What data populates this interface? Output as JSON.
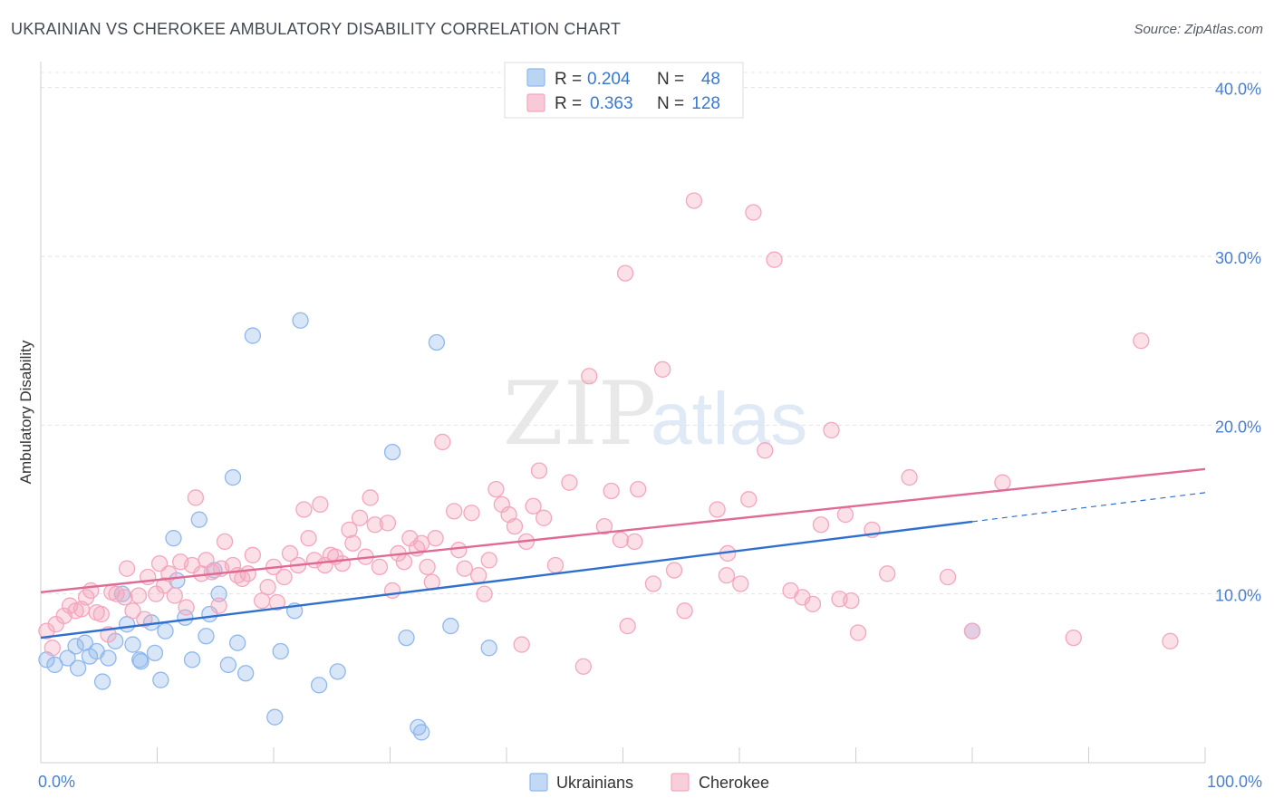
{
  "header": {
    "title": "UKRAINIAN VS CHEROKEE AMBULATORY DISABILITY CORRELATION CHART",
    "source": "Source: ZipAtlas.com"
  },
  "watermark": {
    "zip": "ZIP",
    "atlas": "atlas"
  },
  "legend": {
    "r_label": "R =",
    "n_label": "N =",
    "rows": [
      {
        "r": "0.204",
        "n": "48",
        "color": "#8fb8ec"
      },
      {
        "r": "0.363",
        "n": "128",
        "color": "#f4a6be"
      }
    ]
  },
  "bottom_legend": [
    "Ukrainians",
    "Cherokee"
  ],
  "chart_data": {
    "type": "scatter",
    "title": "UKRAINIAN VS CHEROKEE AMBULATORY DISABILITY CORRELATION CHART",
    "xlabel": "",
    "ylabel": "Ambulatory Disability",
    "xlim": [
      0,
      100
    ],
    "ylim": [
      0,
      41
    ],
    "x_tick_labels": [
      "0.0%",
      "100.0%"
    ],
    "y_ticks": [
      10,
      20,
      30,
      40
    ],
    "y_tick_labels": [
      "10.0%",
      "20.0%",
      "30.0%",
      "40.0%"
    ],
    "grid": true,
    "series": [
      {
        "name": "Ukrainians",
        "color": "#8fb8ec",
        "line_color": "#2f6fd0",
        "trend": {
          "x0": 0,
          "y0": 7.4,
          "x1": 100,
          "y1": 16.0,
          "solid_until": 80
        },
        "points": [
          [
            0.5,
            6.1
          ],
          [
            1.2,
            5.8
          ],
          [
            2.3,
            6.2
          ],
          [
            3.0,
            6.9
          ],
          [
            3.2,
            5.6
          ],
          [
            3.8,
            7.1
          ],
          [
            4.2,
            6.3
          ],
          [
            4.8,
            6.6
          ],
          [
            5.3,
            4.8
          ],
          [
            5.8,
            6.2
          ],
          [
            6.4,
            7.2
          ],
          [
            7.0,
            10.0
          ],
          [
            7.4,
            8.2
          ],
          [
            7.9,
            7.0
          ],
          [
            8.5,
            6.1
          ],
          [
            8.6,
            6.0
          ],
          [
            9.5,
            8.3
          ],
          [
            9.8,
            6.5
          ],
          [
            10.3,
            4.9
          ],
          [
            10.7,
            7.8
          ],
          [
            11.4,
            13.3
          ],
          [
            11.7,
            10.8
          ],
          [
            12.4,
            8.6
          ],
          [
            13.0,
            6.1
          ],
          [
            13.6,
            14.4
          ],
          [
            14.2,
            7.5
          ],
          [
            14.5,
            8.8
          ],
          [
            14.9,
            11.4
          ],
          [
            15.3,
            10.0
          ],
          [
            16.1,
            5.8
          ],
          [
            16.5,
            16.9
          ],
          [
            16.9,
            7.1
          ],
          [
            17.6,
            5.3
          ],
          [
            18.2,
            25.3
          ],
          [
            20.1,
            2.7
          ],
          [
            20.6,
            6.6
          ],
          [
            21.8,
            9.0
          ],
          [
            22.3,
            26.2
          ],
          [
            23.9,
            4.6
          ],
          [
            25.5,
            5.4
          ],
          [
            30.2,
            18.4
          ],
          [
            31.4,
            7.4
          ],
          [
            32.4,
            2.1
          ],
          [
            32.7,
            1.8
          ],
          [
            34.0,
            24.9
          ],
          [
            35.2,
            8.1
          ],
          [
            38.5,
            6.8
          ],
          [
            80.0,
            7.8
          ]
        ]
      },
      {
        "name": "Cherokee",
        "color": "#f4a6be",
        "line_color": "#e06a95",
        "trend": {
          "x0": 0,
          "y0": 10.1,
          "x1": 100,
          "y1": 17.4
        },
        "points": [
          [
            0.5,
            7.8
          ],
          [
            1.0,
            6.8
          ],
          [
            1.3,
            8.2
          ],
          [
            2.0,
            8.7
          ],
          [
            2.5,
            9.3
          ],
          [
            3.0,
            9.0
          ],
          [
            3.5,
            9.1
          ],
          [
            3.9,
            9.8
          ],
          [
            4.3,
            10.2
          ],
          [
            4.8,
            8.9
          ],
          [
            5.2,
            8.8
          ],
          [
            5.8,
            7.6
          ],
          [
            6.1,
            10.1
          ],
          [
            6.5,
            10.0
          ],
          [
            7.2,
            9.8
          ],
          [
            7.4,
            11.5
          ],
          [
            7.9,
            9.0
          ],
          [
            8.4,
            9.9
          ],
          [
            8.9,
            8.5
          ],
          [
            9.2,
            11.0
          ],
          [
            9.9,
            10.0
          ],
          [
            10.2,
            11.8
          ],
          [
            10.6,
            10.5
          ],
          [
            11.0,
            11.2
          ],
          [
            11.5,
            9.9
          ],
          [
            12.0,
            11.9
          ],
          [
            12.5,
            9.2
          ],
          [
            13.0,
            11.7
          ],
          [
            13.3,
            15.7
          ],
          [
            13.8,
            11.2
          ],
          [
            14.2,
            12.0
          ],
          [
            14.7,
            11.3
          ],
          [
            15.3,
            9.3
          ],
          [
            15.5,
            11.5
          ],
          [
            15.8,
            13.1
          ],
          [
            16.5,
            11.7
          ],
          [
            16.9,
            11.1
          ],
          [
            17.3,
            10.9
          ],
          [
            17.8,
            11.2
          ],
          [
            18.2,
            12.3
          ],
          [
            19.0,
            9.6
          ],
          [
            19.5,
            10.4
          ],
          [
            20.0,
            11.6
          ],
          [
            20.3,
            9.5
          ],
          [
            20.9,
            11.0
          ],
          [
            21.4,
            12.4
          ],
          [
            22.1,
            11.7
          ],
          [
            22.6,
            15.0
          ],
          [
            23.0,
            13.3
          ],
          [
            23.5,
            12.0
          ],
          [
            24.0,
            15.3
          ],
          [
            24.4,
            11.7
          ],
          [
            24.9,
            12.3
          ],
          [
            25.3,
            12.2
          ],
          [
            25.9,
            11.8
          ],
          [
            26.5,
            13.8
          ],
          [
            26.8,
            13.0
          ],
          [
            27.4,
            14.5
          ],
          [
            27.9,
            12.2
          ],
          [
            28.3,
            15.7
          ],
          [
            28.7,
            14.1
          ],
          [
            29.1,
            11.6
          ],
          [
            29.8,
            14.2
          ],
          [
            30.2,
            10.2
          ],
          [
            30.7,
            12.4
          ],
          [
            31.2,
            11.9
          ],
          [
            31.7,
            13.3
          ],
          [
            32.3,
            12.7
          ],
          [
            32.7,
            13.0
          ],
          [
            33.2,
            11.6
          ],
          [
            33.6,
            10.7
          ],
          [
            33.9,
            13.3
          ],
          [
            34.5,
            19.0
          ],
          [
            35.5,
            14.9
          ],
          [
            35.9,
            12.6
          ],
          [
            36.4,
            11.5
          ],
          [
            37.0,
            14.8
          ],
          [
            37.6,
            11.1
          ],
          [
            38.1,
            10.0
          ],
          [
            38.5,
            12.0
          ],
          [
            39.1,
            16.2
          ],
          [
            39.6,
            15.3
          ],
          [
            40.2,
            14.7
          ],
          [
            40.7,
            14.0
          ],
          [
            41.3,
            7.0
          ],
          [
            41.7,
            13.1
          ],
          [
            42.3,
            15.2
          ],
          [
            42.8,
            17.3
          ],
          [
            43.2,
            14.5
          ],
          [
            44.2,
            11.7
          ],
          [
            45.4,
            16.6
          ],
          [
            46.6,
            5.7
          ],
          [
            47.1,
            22.9
          ],
          [
            48.4,
            14.0
          ],
          [
            49.0,
            16.1
          ],
          [
            49.8,
            13.2
          ],
          [
            50.2,
            29.0
          ],
          [
            50.4,
            8.1
          ],
          [
            51.0,
            13.1
          ],
          [
            51.3,
            16.2
          ],
          [
            52.6,
            10.6
          ],
          [
            53.4,
            23.3
          ],
          [
            54.4,
            11.4
          ],
          [
            55.3,
            9.0
          ],
          [
            56.1,
            33.3
          ],
          [
            58.1,
            15.0
          ],
          [
            58.9,
            11.1
          ],
          [
            59.0,
            12.4
          ],
          [
            60.1,
            10.6
          ],
          [
            60.8,
            15.6
          ],
          [
            61.2,
            32.6
          ],
          [
            62.2,
            18.5
          ],
          [
            63.0,
            29.8
          ],
          [
            64.4,
            10.2
          ],
          [
            65.4,
            9.8
          ],
          [
            66.3,
            9.4
          ],
          [
            67.0,
            14.1
          ],
          [
            67.9,
            19.7
          ],
          [
            68.6,
            9.7
          ],
          [
            69.1,
            14.7
          ],
          [
            69.6,
            9.6
          ],
          [
            70.2,
            7.7
          ],
          [
            71.4,
            13.8
          ],
          [
            72.7,
            11.2
          ],
          [
            74.6,
            16.9
          ],
          [
            77.9,
            11.0
          ],
          [
            80.0,
            7.8
          ],
          [
            88.7,
            7.4
          ],
          [
            94.5,
            25.0
          ],
          [
            97.0,
            7.2
          ],
          [
            82.6,
            16.6
          ]
        ]
      }
    ]
  }
}
